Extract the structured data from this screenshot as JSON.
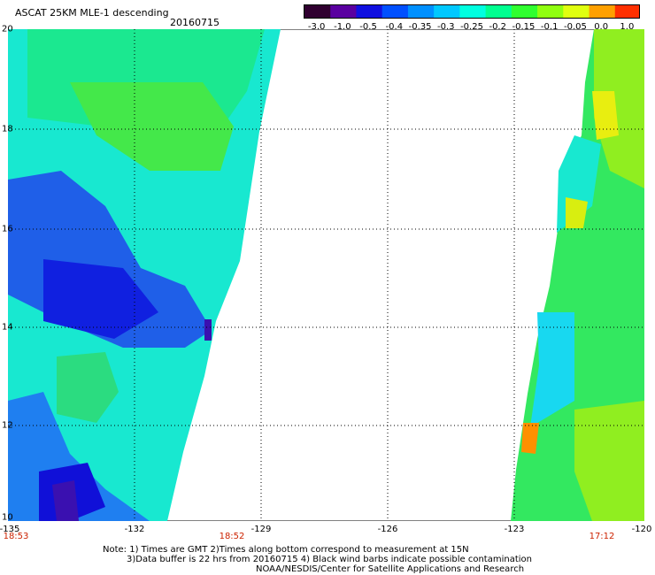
{
  "header": {
    "title": "ASCAT 25KM MLE-1 descending",
    "date": "20160715"
  },
  "colorbar": {
    "ticks": [
      "-3.0",
      "-1.0",
      "-0.5",
      "-0.4",
      "-0.35",
      "-0.3",
      "-0.25",
      "-0.2",
      "-0.15",
      "-0.1",
      "-0.05",
      "0.0",
      "1.0"
    ],
    "colors": [
      "#300030",
      "#5a00a0",
      "#1010e0",
      "#0050ff",
      "#0090ff",
      "#00c8ff",
      "#00ffe0",
      "#00ff90",
      "#30ff30",
      "#90ff10",
      "#e0ff10",
      "#ffa000",
      "#ff3000"
    ]
  },
  "map": {
    "lat_labels": [
      "20",
      "18",
      "16",
      "14",
      "12",
      "10"
    ],
    "lon_labels": [
      "-135",
      "-132",
      "-129",
      "-126",
      "-123",
      "-120"
    ],
    "time_labels": [
      "18:53",
      "18:52",
      "17:12"
    ]
  },
  "notes": {
    "line1": "Note: 1) Times are GMT 2)Times along bottom correspond to measurement at 15N",
    "line2": "3)Data buffer is 22 hrs from 20160715 4) Black wind barbs indicate possible contamination",
    "line3": "NOAA/NESDIS/Center for Satellite Applications and Research"
  }
}
